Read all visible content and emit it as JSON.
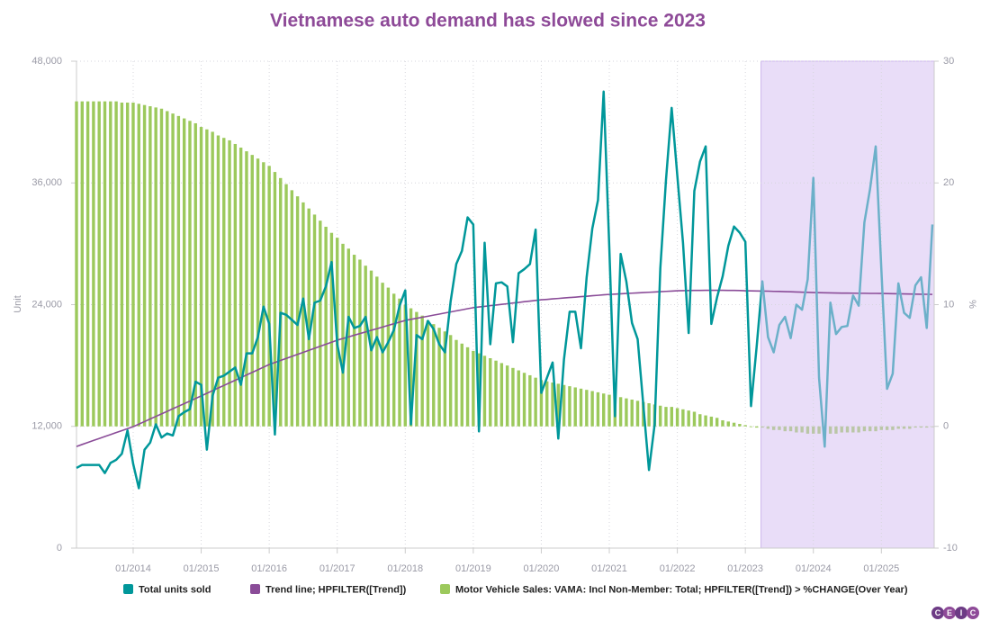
{
  "chart_data": {
    "type": "line",
    "title": "Vietnamese auto demand has slowed since 2023",
    "ylabel": "Unit",
    "y2label": "%",
    "categories": [
      null,
      null,
      null,
      null,
      null,
      null,
      null,
      null,
      null,
      null,
      "01/2014",
      null,
      null,
      null,
      null,
      null,
      null,
      null,
      null,
      null,
      null,
      null,
      "01/2015",
      null,
      null,
      null,
      null,
      null,
      null,
      null,
      null,
      null,
      null,
      null,
      "01/2016",
      null,
      null,
      null,
      null,
      null,
      null,
      null,
      null,
      null,
      null,
      null,
      "01/2017",
      null,
      null,
      null,
      null,
      null,
      null,
      null,
      null,
      null,
      null,
      null,
      "01/2018",
      null,
      null,
      null,
      null,
      null,
      null,
      null,
      null,
      null,
      null,
      null,
      "01/2019",
      null,
      null,
      null,
      null,
      null,
      null,
      null,
      null,
      null,
      null,
      null,
      "01/2020",
      null,
      null,
      null,
      null,
      null,
      null,
      null,
      null,
      null,
      null,
      null,
      "01/2021",
      null,
      null,
      null,
      null,
      null,
      null,
      null,
      null,
      null,
      null,
      null,
      "01/2022",
      null,
      null,
      null,
      null,
      null,
      null,
      null,
      null,
      null,
      null,
      null,
      "01/2023",
      null,
      null,
      null,
      null,
      null,
      null,
      null,
      null,
      null,
      null,
      null,
      "01/2024",
      null,
      null,
      null,
      null,
      null,
      null,
      null,
      null,
      null,
      null,
      null,
      "01/2025",
      null,
      null,
      null,
      null,
      null,
      null,
      null,
      null,
      null
    ],
    "series": [
      {
        "name": "Total units sold",
        "color": "#00979a",
        "type": "line",
        "values": [
          7900,
          8200,
          8200,
          8200,
          8200,
          7400,
          8400,
          8700,
          9300,
          11600,
          8300,
          5900,
          9700,
          10400,
          12200,
          10900,
          11300,
          11100,
          13000,
          13400,
          13700,
          16400,
          16100,
          9700,
          15000,
          16800,
          17000,
          17400,
          17800,
          16100,
          19200,
          19200,
          20800,
          23800,
          22100,
          11200,
          23200,
          23000,
          22500,
          22000,
          24600,
          20600,
          24200,
          24400,
          25800,
          28200,
          20100,
          17300,
          22800,
          21700,
          21900,
          22800,
          19500,
          20800,
          19300,
          20300,
          21500,
          23900,
          25400,
          12200,
          21000,
          20600,
          22400,
          21600,
          20100,
          19300,
          24300,
          28000,
          29300,
          32600,
          31900,
          11500,
          30100,
          20100,
          26100,
          26200,
          25800,
          20300,
          27100,
          27500,
          28000,
          31400,
          15300,
          16800,
          18300,
          10800,
          18600,
          23300,
          23300,
          19700,
          26700,
          31500,
          34300,
          45000,
          29600,
          13000,
          29000,
          26300,
          22200,
          20600,
          14100,
          7700,
          12200,
          27600,
          36300,
          43400,
          36700,
          30100,
          21200,
          35200,
          38100,
          39600,
          22100,
          24700,
          26800,
          29800,
          31700,
          31100,
          30200,
          14000,
          19900,
          26300,
          20800,
          19300,
          22000,
          22800,
          20700,
          24000,
          23500,
          26500,
          36500,
          16800,
          10000,
          24200,
          21100,
          21800,
          21900,
          24900,
          23900,
          32100,
          35400,
          39600,
          27400,
          15700,
          17200,
          26100,
          23200,
          22700,
          25900,
          26700,
          21700,
          31900
        ]
      },
      {
        "name": "Trend line; HPFILTER([Trend])",
        "color": "#8a4c98",
        "type": "line",
        "values": [
          10020,
          10220,
          10410,
          10610,
          10800,
          11000,
          11190,
          11390,
          11580,
          11780,
          11970,
          12220,
          12470,
          12730,
          12980,
          13230,
          13480,
          13740,
          13990,
          14240,
          14490,
          14750,
          15000,
          15260,
          15520,
          15780,
          16030,
          16290,
          16550,
          16810,
          17070,
          17320,
          17580,
          17840,
          18100,
          18300,
          18500,
          18700,
          18900,
          19100,
          19300,
          19500,
          19700,
          19900,
          20100,
          20300,
          20500,
          20660,
          20820,
          20990,
          21150,
          21310,
          21470,
          21630,
          21790,
          21960,
          22120,
          22280,
          22440,
          22550,
          22650,
          22760,
          22860,
          22970,
          23070,
          23180,
          23280,
          23390,
          23490,
          23600,
          23700,
          23770,
          23830,
          23900,
          23960,
          24030,
          24090,
          24160,
          24220,
          24290,
          24350,
          24420,
          24480,
          24520,
          24570,
          24610,
          24660,
          24700,
          24740,
          24790,
          24830,
          24880,
          24920,
          24970,
          25010,
          25040,
          25070,
          25100,
          25130,
          25160,
          25190,
          25220,
          25250,
          25280,
          25310,
          25340,
          25370,
          25380,
          25390,
          25400,
          25400,
          25410,
          25410,
          25410,
          25410,
          25400,
          25400,
          25390,
          25370,
          25360,
          25350,
          25340,
          25330,
          25310,
          25300,
          25280,
          25270,
          25250,
          25230,
          25210,
          25190,
          25180,
          25170,
          25160,
          25150,
          25140,
          25140,
          25130,
          25120,
          25120,
          25110,
          25110,
          25100,
          25090,
          25080,
          25070,
          25060,
          25050,
          25040,
          25030,
          25020,
          25010
        ]
      },
      {
        "name": "Motor Vehicle Sales: VAMA: Incl Non-Member: Total; HPFILTER([Trend]) > %CHANGE(Over Year)",
        "color": "#9cc95c",
        "type": "bar",
        "axis": "y2",
        "values": [
          26.7,
          26.7,
          26.7,
          26.7,
          26.7,
          26.7,
          26.7,
          26.7,
          26.6,
          26.6,
          26.6,
          26.5,
          26.4,
          26.3,
          26.2,
          26.1,
          25.9,
          25.7,
          25.5,
          25.3,
          25.1,
          24.9,
          24.6,
          24.4,
          24.2,
          23.9,
          23.7,
          23.5,
          23.2,
          22.9,
          22.6,
          22.3,
          22.0,
          21.7,
          21.4,
          20.9,
          20.4,
          19.9,
          19.4,
          18.9,
          18.4,
          17.9,
          17.4,
          16.9,
          16.4,
          15.9,
          15.5,
          15.0,
          14.6,
          14.1,
          13.7,
          13.2,
          12.8,
          12.3,
          11.8,
          11.4,
          10.9,
          10.5,
          10.0,
          9.7,
          9.4,
          9.1,
          8.7,
          8.4,
          8.1,
          7.8,
          7.5,
          7.1,
          6.8,
          6.5,
          6.2,
          6.0,
          5.8,
          5.6,
          5.4,
          5.2,
          5.0,
          4.8,
          4.6,
          4.4,
          4.2,
          4.0,
          3.8,
          3.7,
          3.6,
          3.5,
          3.4,
          3.3,
          3.2,
          3.1,
          3.0,
          2.9,
          2.8,
          2.7,
          2.6,
          2.5,
          2.4,
          2.3,
          2.2,
          2.1,
          2.0,
          1.9,
          1.8,
          1.7,
          1.6,
          1.6,
          1.5,
          1.4,
          1.3,
          1.2,
          1.0,
          0.9,
          0.8,
          0.7,
          0.5,
          0.4,
          0.3,
          0.2,
          0.1,
          0.0,
          -0.1,
          -0.1,
          -0.2,
          -0.3,
          -0.3,
          -0.4,
          -0.4,
          -0.5,
          -0.5,
          -0.6,
          -0.6,
          -0.6,
          -0.6,
          -0.6,
          -0.6,
          -0.5,
          -0.5,
          -0.5,
          -0.5,
          -0.4,
          -0.4,
          -0.4,
          -0.3,
          -0.3,
          -0.3,
          -0.2,
          -0.2,
          -0.2,
          -0.1,
          -0.1,
          -0.1,
          0.0
        ]
      }
    ],
    "ylim": [
      0,
      48000
    ],
    "yticks": [
      0,
      {
        "value": 12000,
        "label": "12,000"
      },
      {
        "value": 24000,
        "label": "24,000"
      },
      {
        "value": 36000,
        "label": "36,000"
      },
      {
        "value": 48000,
        "label": "48,000"
      }
    ],
    "y2lim": [
      -10,
      30
    ],
    "y2ticks": [
      -10,
      0,
      10,
      20,
      30
    ],
    "grid": true,
    "legend": "bottom"
  },
  "logo": [
    "C",
    "E",
    "I",
    "C"
  ]
}
